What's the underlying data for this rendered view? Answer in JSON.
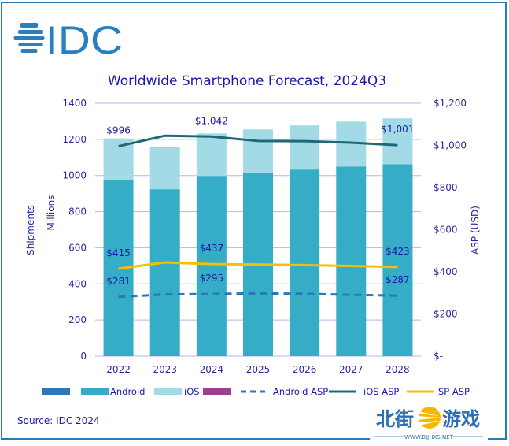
{
  "logo": {
    "text": "IDC",
    "color": "#2a7fc1"
  },
  "source": "Source: IDC 2024",
  "watermark": {
    "text_left": "北街",
    "text_right": "游戏",
    "url": "WWW.BJJHXS.NET"
  },
  "chart_data": {
    "type": "bar",
    "title": "Worldwide Smartphone Forecast, 2024Q3",
    "categories": [
      "2022",
      "2023",
      "2024",
      "2025",
      "2026",
      "2027",
      "2028"
    ],
    "ylabel": "Shipments",
    "ylabel_sub": "Millions",
    "y2label": "ASP (USD)",
    "ylim": [
      0,
      1400
    ],
    "y_ticks": [
      0,
      200,
      400,
      600,
      800,
      1000,
      1200,
      1400
    ],
    "y_tick_labels": [
      "0",
      "200",
      "400",
      "600",
      "800",
      "1000",
      "1200",
      "1400"
    ],
    "y2lim": [
      0,
      1200
    ],
    "y2_tick_labels": [
      "$-",
      "$200",
      "$400",
      "$600",
      "$800",
      "$1,000",
      "$1,200"
    ],
    "y2_ticks": [
      0,
      200,
      400,
      600,
      800,
      1000,
      1200
    ],
    "grid": true,
    "legend_position": "bottom",
    "bar_series": [
      {
        "name": "",
        "color": "#2a77ba",
        "stacked": true,
        "values": [
          0,
          0,
          0,
          0,
          0,
          0,
          0
        ]
      },
      {
        "name": "Android",
        "color": "#36adc7",
        "stacked": true,
        "values": [
          976,
          924,
          998,
          1015,
          1033,
          1050,
          1063
        ]
      },
      {
        "name": "iOS",
        "color": "#a2dbe6",
        "stacked": true,
        "values": [
          229,
          236,
          235,
          240,
          244,
          248,
          253
        ]
      },
      {
        "name": "",
        "color": "#9b3f8e",
        "stacked": true,
        "values": [
          0,
          0,
          0,
          0,
          0,
          0,
          0
        ]
      }
    ],
    "line_series": [
      {
        "name": "Android ASP",
        "color": "#2a77ba",
        "dashed": true,
        "axis": "right",
        "values": [
          281,
          293,
          295,
          298,
          296,
          291,
          287
        ],
        "labels": {
          "0": "$281",
          "2": "$295",
          "6": "$287"
        }
      },
      {
        "name": "iOS ASP",
        "color": "#1f6878",
        "dashed": false,
        "axis": "right",
        "values": [
          996,
          1046,
          1042,
          1021,
          1020,
          1013,
          1001
        ],
        "labels": {
          "0": "$996",
          "2": "$1,042",
          "6": "$1,001"
        }
      },
      {
        "name": "SP ASP",
        "color": "#f5c000",
        "dashed": false,
        "axis": "right",
        "values": [
          415,
          445,
          437,
          435,
          432,
          428,
          423
        ],
        "labels": {
          "0": "$415",
          "2": "$437",
          "6": "$423"
        }
      }
    ],
    "legend": [
      {
        "name": "",
        "kind": "bar",
        "color": "#2a77ba"
      },
      {
        "name": "Android",
        "kind": "bar",
        "color": "#36adc7"
      },
      {
        "name": "iOS",
        "kind": "bar",
        "color": "#a2dbe6"
      },
      {
        "name": "",
        "kind": "bar",
        "color": "#9b3f8e"
      },
      {
        "name": "Android ASP",
        "kind": "dash",
        "color": "#2a77ba"
      },
      {
        "name": "iOS ASP",
        "kind": "line",
        "color": "#1f6878"
      },
      {
        "name": "SP ASP",
        "kind": "line",
        "color": "#f5c000"
      }
    ]
  }
}
